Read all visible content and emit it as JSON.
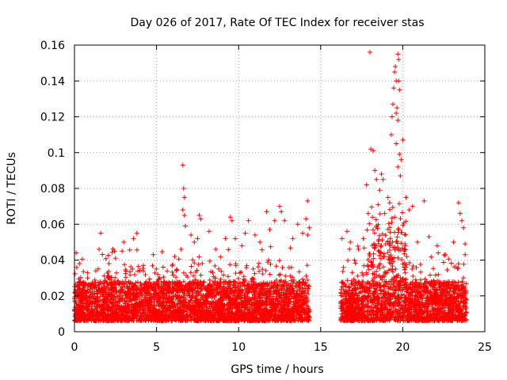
{
  "chart_data": {
    "type": "scatter",
    "title": "Day 026 of 2017, Rate Of TEC Index for receiver stas",
    "xlabel": "GPS time / hours",
    "ylabel": "ROTI / TECUs",
    "xlim": [
      0,
      25
    ],
    "ylim": [
      0,
      0.16
    ],
    "x_ticks": [
      0,
      5,
      10,
      15,
      20,
      25
    ],
    "x_tick_labels": [
      "0",
      "5",
      "10",
      "15",
      "20",
      "25"
    ],
    "y_ticks": [
      0,
      0.02,
      0.04,
      0.06,
      0.08,
      0.1,
      0.12,
      0.14,
      0.16
    ],
    "y_tick_labels": [
      "0",
      "0.02",
      "0.04",
      "0.06",
      "0.08",
      "0.1",
      "0.12",
      "0.14",
      "0.16"
    ],
    "grid": true,
    "marker": "+",
    "color": "#ff0000",
    "series": [
      {
        "name": "ROTI",
        "points": [
          [
            0.1,
            0.044
          ],
          [
            0.3,
            0.038
          ],
          [
            0.8,
            0.03
          ],
          [
            1.3,
            0.034
          ],
          [
            1.5,
            0.046
          ],
          [
            1.6,
            0.055
          ],
          [
            2.1,
            0.038
          ],
          [
            2.5,
            0.041
          ],
          [
            2.9,
            0.045
          ],
          [
            3.0,
            0.05
          ],
          [
            3.6,
            0.052
          ],
          [
            3.8,
            0.055
          ],
          [
            4.2,
            0.037
          ],
          [
            4.8,
            0.043
          ],
          [
            5.4,
            0.036
          ],
          [
            6.1,
            0.042
          ],
          [
            6.5,
            0.046
          ],
          [
            6.6,
            0.093
          ],
          [
            6.65,
            0.08
          ],
          [
            6.7,
            0.075
          ],
          [
            6.6,
            0.068
          ],
          [
            6.7,
            0.065
          ],
          [
            6.75,
            0.059
          ],
          [
            7.1,
            0.054
          ],
          [
            7.3,
            0.05
          ],
          [
            7.5,
            0.052
          ],
          [
            7.6,
            0.065
          ],
          [
            7.7,
            0.063
          ],
          [
            8.2,
            0.056
          ],
          [
            8.6,
            0.046
          ],
          [
            9.2,
            0.052
          ],
          [
            9.5,
            0.064
          ],
          [
            9.6,
            0.062
          ],
          [
            9.8,
            0.052
          ],
          [
            10.2,
            0.048
          ],
          [
            10.4,
            0.055
          ],
          [
            10.6,
            0.062
          ],
          [
            11.0,
            0.054
          ],
          [
            11.3,
            0.05
          ],
          [
            11.7,
            0.067
          ],
          [
            11.9,
            0.057
          ],
          [
            12.2,
            0.062
          ],
          [
            12.5,
            0.07
          ],
          [
            12.6,
            0.067
          ],
          [
            12.8,
            0.062
          ],
          [
            13.3,
            0.052
          ],
          [
            13.6,
            0.06
          ],
          [
            13.9,
            0.055
          ],
          [
            14.1,
            0.063
          ],
          [
            14.2,
            0.073
          ],
          [
            14.3,
            0.058
          ],
          [
            14.2,
            0.054
          ],
          [
            16.3,
            0.052
          ],
          [
            16.6,
            0.056
          ],
          [
            16.8,
            0.05
          ],
          [
            17.3,
            0.046
          ],
          [
            17.6,
            0.052
          ],
          [
            17.8,
            0.082
          ],
          [
            17.9,
            0.066
          ],
          [
            18.0,
            0.156
          ],
          [
            18.05,
            0.102
          ],
          [
            18.2,
            0.101
          ],
          [
            18.3,
            0.09
          ],
          [
            18.4,
            0.085
          ],
          [
            18.5,
            0.071
          ],
          [
            18.6,
            0.079
          ],
          [
            18.7,
            0.088
          ],
          [
            18.8,
            0.085
          ],
          [
            18.9,
            0.066
          ],
          [
            19.1,
            0.075
          ],
          [
            19.2,
            0.072
          ],
          [
            19.3,
            0.11
          ],
          [
            19.35,
            0.12
          ],
          [
            19.4,
            0.127
          ],
          [
            19.45,
            0.136
          ],
          [
            19.5,
            0.145
          ],
          [
            19.55,
            0.148
          ],
          [
            19.6,
            0.14
          ],
          [
            19.6,
            0.122
          ],
          [
            19.65,
            0.125
          ],
          [
            19.7,
            0.118
          ],
          [
            19.7,
            0.155
          ],
          [
            19.75,
            0.152
          ],
          [
            19.75,
            0.14
          ],
          [
            19.8,
            0.135
          ],
          [
            19.8,
            0.099
          ],
          [
            19.7,
            0.092
          ],
          [
            19.85,
            0.087
          ],
          [
            19.9,
            0.096
          ],
          [
            19.6,
            0.105
          ],
          [
            20.0,
            0.107
          ],
          [
            20.2,
            0.075
          ],
          [
            20.4,
            0.068
          ],
          [
            20.6,
            0.07
          ],
          [
            20.9,
            0.05
          ],
          [
            21.3,
            0.073
          ],
          [
            21.6,
            0.053
          ],
          [
            22.1,
            0.048
          ],
          [
            22.6,
            0.043
          ],
          [
            23.1,
            0.05
          ],
          [
            23.4,
            0.072
          ],
          [
            23.5,
            0.066
          ],
          [
            23.6,
            0.062
          ],
          [
            23.7,
            0.058
          ],
          [
            23.8,
            0.049
          ],
          [
            23.8,
            0.043
          ]
        ]
      }
    ],
    "segments": [
      {
        "x_start": 0.0,
        "x_end": 14.3
      },
      {
        "x_start": 16.2,
        "x_end": 23.9
      }
    ]
  }
}
